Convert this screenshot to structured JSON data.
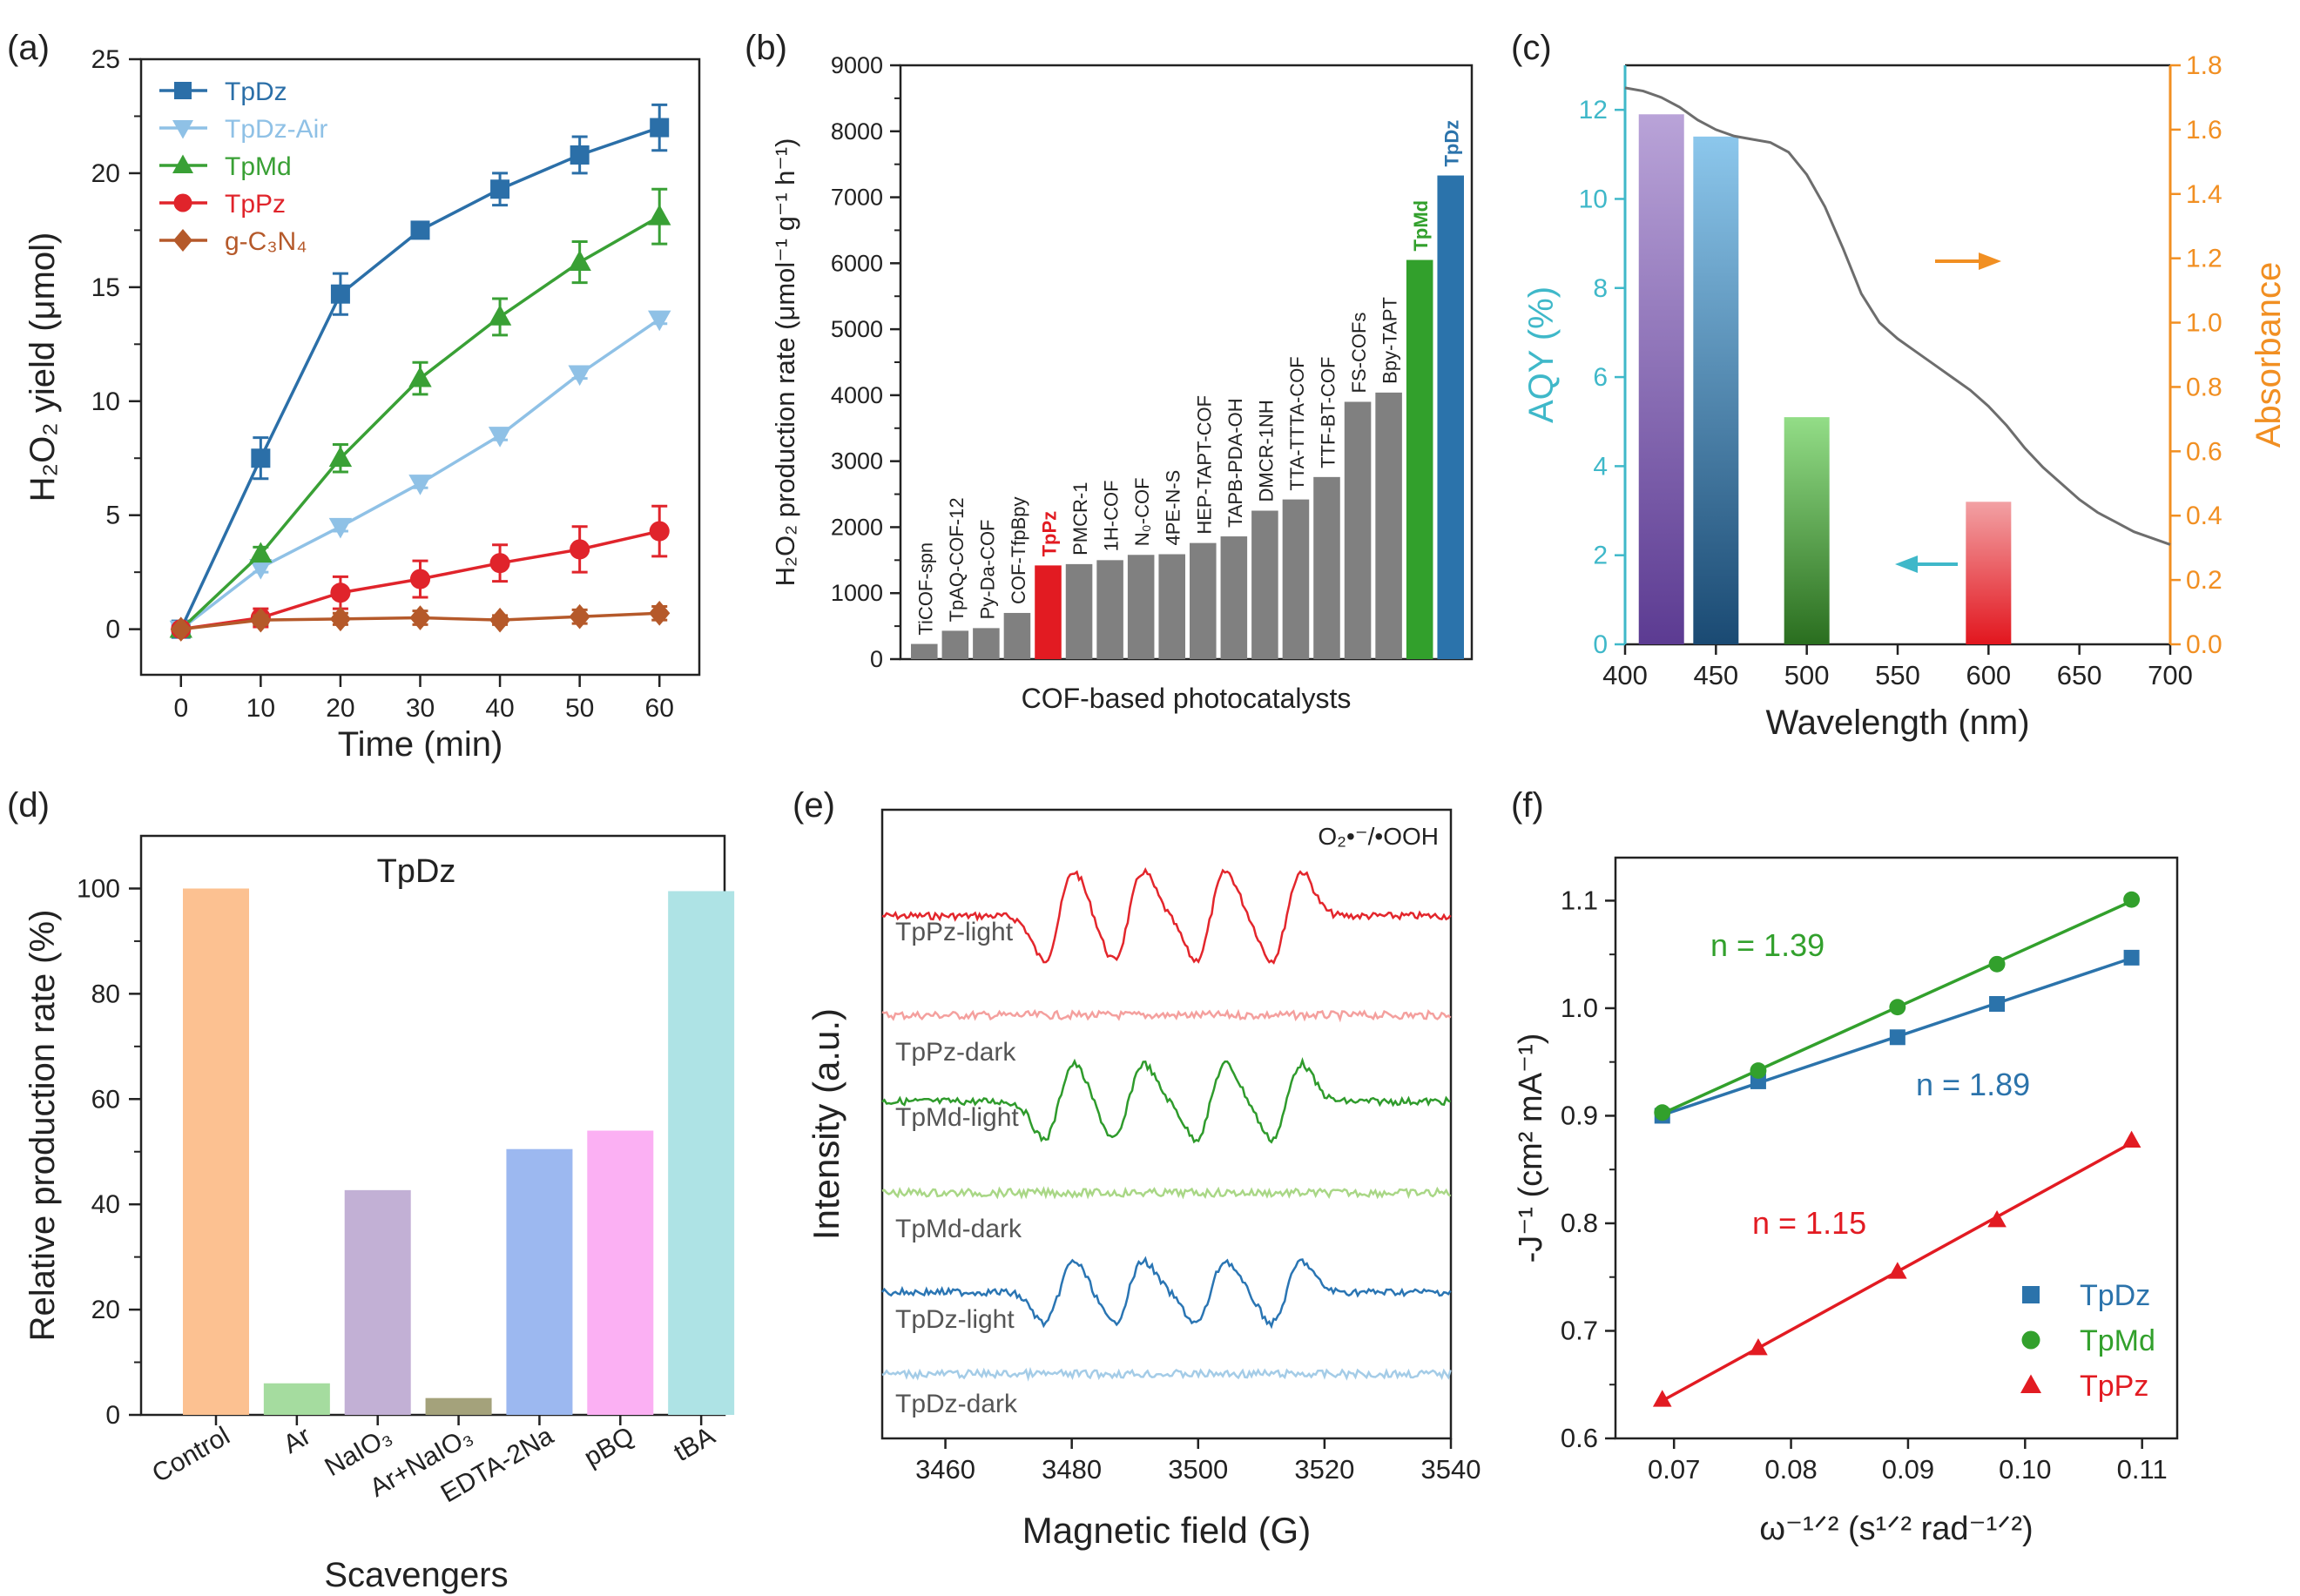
{
  "chart_data": [
    {
      "panel": "(a)",
      "type": "line",
      "title": "",
      "xlabel": "Time (min)",
      "ylabel": "H₂O₂ yield (μmol)",
      "xlim": [
        -5,
        65
      ],
      "ylim": [
        -2,
        25
      ],
      "xticks": [
        0,
        10,
        20,
        30,
        40,
        50,
        60
      ],
      "yticks": [
        0,
        5,
        10,
        15,
        20,
        25
      ],
      "legend": "top-left",
      "x": [
        0,
        10,
        20,
        30,
        40,
        50,
        60
      ],
      "series": [
        {
          "name": "TpDz",
          "marker": "square",
          "color": "#2b6fa8",
          "values": [
            0,
            7.5,
            14.7,
            17.5,
            19.3,
            20.8,
            22.0
          ],
          "errors": [
            0.3,
            0.9,
            0.9,
            0.3,
            0.7,
            0.8,
            1.0
          ]
        },
        {
          "name": "TpDz-Air",
          "marker": "triangle-down",
          "color": "#8fc1e6",
          "values": [
            0,
            2.7,
            4.5,
            6.4,
            8.5,
            11.2,
            13.6
          ],
          "errors": [
            0.2,
            0.2,
            0.2,
            0.2,
            0.2,
            0.2,
            0.2
          ]
        },
        {
          "name": "TpMd",
          "marker": "triangle-up",
          "color": "#39a035",
          "values": [
            0,
            3.3,
            7.5,
            11.0,
            13.7,
            16.1,
            18.1
          ],
          "errors": [
            0.2,
            0.3,
            0.6,
            0.7,
            0.8,
            0.9,
            1.2
          ]
        },
        {
          "name": "TpPz",
          "marker": "circle",
          "color": "#e0242b",
          "values": [
            0,
            0.5,
            1.6,
            2.2,
            2.9,
            3.5,
            4.3
          ],
          "errors": [
            0.2,
            0.4,
            0.7,
            0.8,
            0.8,
            1.0,
            1.1
          ]
        },
        {
          "name": "g-C₃N₄",
          "marker": "diamond",
          "color": "#b5592a",
          "values": [
            0,
            0.4,
            0.45,
            0.5,
            0.4,
            0.55,
            0.7
          ],
          "errors": [
            0.1,
            0.2,
            0.25,
            0.3,
            0.2,
            0.3,
            0.3
          ]
        }
      ]
    },
    {
      "panel": "(b)",
      "type": "bar",
      "title": "",
      "xlabel": "COF-based photocatalysts",
      "ylabel": "H₂O₂ production rate (μmol⁻¹ g⁻¹ h⁻¹)",
      "ylim": [
        0,
        9000
      ],
      "yticks": [
        0,
        1000,
        2000,
        3000,
        4000,
        5000,
        6000,
        7000,
        8000,
        9000
      ],
      "categories": [
        "TiCOF-spn",
        "TpAQ-COF-12",
        "Py-Da-COF",
        "COF-TfpBpy",
        "TpPz",
        "PMCR-1",
        "1H-COF",
        "N₀-COF",
        "4PE-N-S",
        "HEP-TAPT-COF",
        "TAPB-PDA-OH",
        "DMCR-1NH",
        "TTA-TTTA-COF",
        "TTF-BT-COF",
        "FS-COFs",
        "Bpy-TAPT",
        "TpMd",
        "TpDz"
      ],
      "values": [
        230,
        430,
        470,
        700,
        1420,
        1440,
        1500,
        1580,
        1590,
        1760,
        1860,
        2250,
        2420,
        2760,
        3900,
        4040,
        6050,
        7330
      ],
      "colors": [
        "#808080",
        "#808080",
        "#808080",
        "#808080",
        "#e21b22",
        "#808080",
        "#808080",
        "#808080",
        "#808080",
        "#808080",
        "#808080",
        "#808080",
        "#808080",
        "#808080",
        "#808080",
        "#808080",
        "#32a02c",
        "#2b73ab"
      ]
    },
    {
      "panel": "(c)",
      "type": "bar",
      "title": "",
      "xlabel": "Wavelength (nm)",
      "ylabel": "AQY (%)",
      "y2label": "Absorbance",
      "xlim": [
        400,
        700
      ],
      "ylim": [
        0,
        13
      ],
      "y2lim": [
        0,
        1.8
      ],
      "xticks": [
        400,
        450,
        500,
        550,
        600,
        650,
        700
      ],
      "yticks": [
        0,
        2,
        4,
        6,
        8,
        10,
        12
      ],
      "y2ticks": [
        "0.0",
        "0.2",
        "0.4",
        "0.6",
        "0.8",
        "1.0",
        "1.2",
        "1.4",
        "1.6",
        "1.8"
      ],
      "bars": [
        {
          "x": 420,
          "value": 11.9,
          "top_color": "#b9a3d8",
          "bottom_color": "#5c3b92"
        },
        {
          "x": 450,
          "value": 11.4,
          "top_color": "#8cc7ec",
          "bottom_color": "#1a4a73"
        },
        {
          "x": 500,
          "value": 5.1,
          "top_color": "#93dd87",
          "bottom_color": "#2a6e1f"
        },
        {
          "x": 600,
          "value": 3.2,
          "top_color": "#f2a1a4",
          "bottom_color": "#e2161e"
        }
      ],
      "absorbance": {
        "x": [
          400,
          410,
          420,
          430,
          440,
          450,
          460,
          470,
          480,
          490,
          500,
          510,
          520,
          530,
          540,
          550,
          560,
          570,
          580,
          590,
          600,
          610,
          620,
          630,
          640,
          650,
          660,
          670,
          680,
          690,
          700
        ],
        "values": [
          1.73,
          1.72,
          1.7,
          1.67,
          1.63,
          1.6,
          1.58,
          1.57,
          1.56,
          1.53,
          1.46,
          1.36,
          1.23,
          1.09,
          1.0,
          0.95,
          0.91,
          0.87,
          0.83,
          0.79,
          0.74,
          0.68,
          0.61,
          0.55,
          0.5,
          0.45,
          0.41,
          0.38,
          0.35,
          0.33,
          0.31
        ],
        "color": "#6d6d6d"
      }
    },
    {
      "panel": "(d)",
      "type": "bar",
      "title": "TpDz",
      "xlabel": "Scavengers",
      "ylabel": "Relative production rate (%)",
      "ylim": [
        0,
        110
      ],
      "yticks": [
        0,
        20,
        40,
        60,
        80,
        100
      ],
      "categories": [
        "Control",
        "Ar",
        "NaIO₃",
        "Ar+NaIO₃",
        "EDTA-2Na",
        "pBQ",
        "tBA"
      ],
      "values": [
        100,
        6,
        42.7,
        3.2,
        50.5,
        54,
        99.5
      ],
      "colors": [
        "#fcc191",
        "#a5dc9f",
        "#c2b0d5",
        "#a4a27b",
        "#9cb8f0",
        "#fbb0f3",
        "#aee3e5"
      ]
    },
    {
      "panel": "(e)",
      "type": "line",
      "title": "",
      "xlabel": "Magnetic field (G)",
      "ylabel": "Intensity (a.u.)",
      "annotation": "O₂•⁻/•OOH",
      "xlim": [
        3450,
        3540
      ],
      "xticks": [
        3460,
        3480,
        3500,
        3520,
        3540
      ],
      "peaks_G": [
        3478,
        3489,
        3502,
        3514
      ],
      "series": [
        {
          "name": "TpPz-light",
          "color": "#e3262c",
          "signal": 1.0
        },
        {
          "name": "TpPz-dark",
          "color": "#f4a09e",
          "signal": 0.0
        },
        {
          "name": "TpMd-light",
          "color": "#2f9b2c",
          "signal": 0.85
        },
        {
          "name": "TpMd-dark",
          "color": "#a9d786",
          "signal": 0.0
        },
        {
          "name": "TpDz-light",
          "color": "#2a75b3",
          "signal": 0.7
        },
        {
          "name": "TpDz-dark",
          "color": "#a4cce7",
          "signal": 0.0
        }
      ]
    },
    {
      "panel": "(f)",
      "type": "scatter",
      "title": "",
      "xlabel": "ω⁻¹ᐟ² (s¹ᐟ² rad⁻¹ᐟ²)",
      "ylabel": "-J⁻¹ (cm² mA⁻¹)",
      "xlim": [
        0.065,
        0.113
      ],
      "ylim": [
        0.6,
        1.14
      ],
      "xticks": [
        "0.07",
        "0.08",
        "0.09",
        "0.10",
        "0.11"
      ],
      "yticks": [
        "0.6",
        "0.7",
        "0.8",
        "0.9",
        "1.0",
        "1.1"
      ],
      "legend": "bottom-right",
      "x": [
        0.069,
        0.0772,
        0.0891,
        0.0976,
        0.1091
      ],
      "series": [
        {
          "name": "TpDz",
          "marker": "square",
          "color": "#2b73ab",
          "values": [
            0.9,
            0.932,
            0.973,
            1.004,
            1.047
          ],
          "label": "n = 1.89"
        },
        {
          "name": "TpMd",
          "marker": "circle",
          "color": "#32a02c",
          "values": [
            0.903,
            0.942,
            1.001,
            1.041,
            1.101
          ],
          "label": "n = 1.39"
        },
        {
          "name": "TpPz",
          "marker": "triangle-up",
          "color": "#e21b22",
          "values": [
            0.636,
            0.684,
            0.755,
            0.803,
            0.877
          ],
          "label": "n = 1.15"
        }
      ]
    }
  ]
}
